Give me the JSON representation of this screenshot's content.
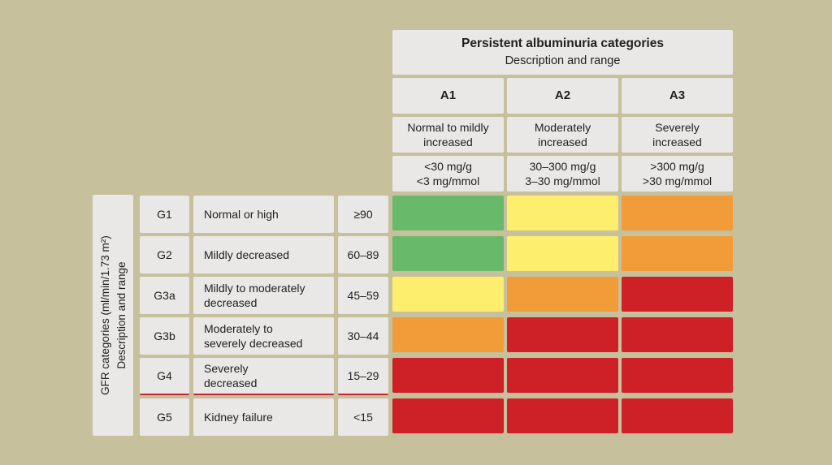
{
  "chart_data": {
    "type": "heatmap",
    "title": "Persistent albuminuria categories",
    "subtitle": "Description and range",
    "y_axis_label": "GFR categories (ml/min/1.73 m²)\nDescription and range",
    "columns": [
      {
        "code": "A1",
        "description": "Normal to mildly\nincreased",
        "range": "<30 mg/g\n<3 mg/mmol"
      },
      {
        "code": "A2",
        "description": "Moderately\nincreased",
        "range": "30–300 mg/g\n3–30 mg/mmol"
      },
      {
        "code": "A3",
        "description": "Severely\nincreased",
        "range": ">300 mg/g\n>30 mg/mmol"
      }
    ],
    "rows": [
      {
        "code": "G1",
        "description": "Normal or high",
        "range": "≥90"
      },
      {
        "code": "G2",
        "description": "Mildly decreased",
        "range": "60–89"
      },
      {
        "code": "G3a",
        "description": "Mildly to moderately\ndecreased",
        "range": "45–59"
      },
      {
        "code": "G3b",
        "description": "Moderately to\nseverely decreased",
        "range": "30–44"
      },
      {
        "code": "G4",
        "description": "Severely\ndecreased",
        "range": "15–29",
        "red_underline": true
      },
      {
        "code": "G5",
        "description": "Kidney failure",
        "range": "<15"
      }
    ],
    "cells": [
      [
        "green",
        "yellow",
        "orange"
      ],
      [
        "green",
        "yellow",
        "orange"
      ],
      [
        "yellow",
        "orange",
        "red"
      ],
      [
        "orange",
        "red",
        "red"
      ],
      [
        "red",
        "red",
        "red"
      ],
      [
        "red",
        "red",
        "red"
      ]
    ],
    "cell_colors": {
      "green": "#68b96a",
      "yellow": "#fdee6e",
      "orange": "#f19c39",
      "red": "#cd2127"
    },
    "background_color": "#c6c09c",
    "panel_color": "#e9e8e6",
    "red_underline_color": "#c2272d",
    "legend_position": "none",
    "grid": false
  }
}
